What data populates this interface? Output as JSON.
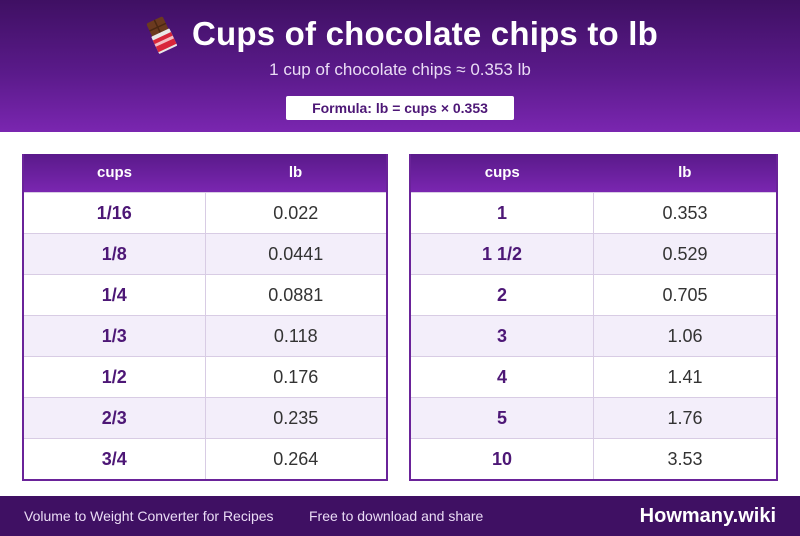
{
  "header": {
    "icon": "chocolate-bar-icon",
    "title": "Cups of chocolate chips to lb",
    "subtitle": "1 cup of chocolate chips ≈ 0.353 lb",
    "formula": "Formula: lb = cups × 0.353"
  },
  "tables": {
    "left": {
      "col1": "cups",
      "col2": "lb",
      "rows": [
        {
          "cups": "1/16",
          "lb": "0.022"
        },
        {
          "cups": "1/8",
          "lb": "0.0441"
        },
        {
          "cups": "1/4",
          "lb": "0.0881"
        },
        {
          "cups": "1/3",
          "lb": "0.118"
        },
        {
          "cups": "1/2",
          "lb": "0.176"
        },
        {
          "cups": "2/3",
          "lb": "0.235"
        },
        {
          "cups": "3/4",
          "lb": "0.264"
        }
      ]
    },
    "right": {
      "col1": "cups",
      "col2": "lb",
      "rows": [
        {
          "cups": "1",
          "lb": "0.353"
        },
        {
          "cups": "1 1/2",
          "lb": "0.529"
        },
        {
          "cups": "2",
          "lb": "0.705"
        },
        {
          "cups": "3",
          "lb": "1.06"
        },
        {
          "cups": "4",
          "lb": "1.41"
        },
        {
          "cups": "5",
          "lb": "1.76"
        },
        {
          "cups": "10",
          "lb": "3.53"
        }
      ]
    }
  },
  "footer": {
    "left_text": "Volume to Weight Converter for Recipes",
    "mid_text": "Free to download and share",
    "brand": "Howmany.wiki"
  },
  "colors": {
    "header_dark": "#3f1063",
    "header_light": "#7a26b0",
    "accent_text": "#4d1776",
    "row_alt": "#f3eefa"
  }
}
